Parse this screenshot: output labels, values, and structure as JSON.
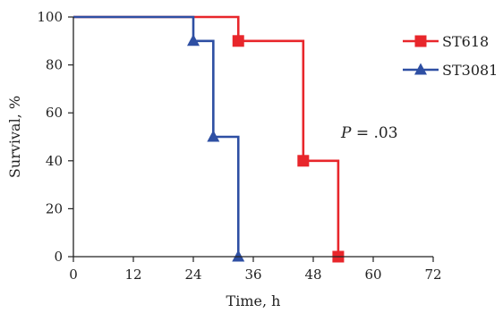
{
  "chart_data": {
    "type": "line",
    "step": true,
    "xlabel": "Time, h",
    "ylabel": "Survival, %",
    "xlim": [
      0,
      72
    ],
    "ylim": [
      0,
      100
    ],
    "xticks": [
      0,
      12,
      24,
      36,
      48,
      60,
      72
    ],
    "yticks": [
      0,
      20,
      40,
      60,
      80,
      100
    ],
    "grid": false,
    "legend_position": "top-right",
    "annotation": {
      "italic": "P",
      "rest": " = .03"
    },
    "series": [
      {
        "name": "ST618",
        "color": "#e8262b",
        "marker": "square",
        "x": [
          0,
          33,
          46,
          53
        ],
        "y": [
          100,
          90,
          40,
          0
        ],
        "marker_x": [
          33,
          46,
          53
        ],
        "marker_y": [
          90,
          40,
          0
        ]
      },
      {
        "name": "ST3081",
        "color": "#2e4fa3",
        "marker": "triangle",
        "x": [
          0,
          24,
          28,
          33
        ],
        "y": [
          100,
          90,
          50,
          0
        ],
        "marker_x": [
          24,
          28,
          33
        ],
        "marker_y": [
          90,
          50,
          0
        ]
      }
    ]
  }
}
